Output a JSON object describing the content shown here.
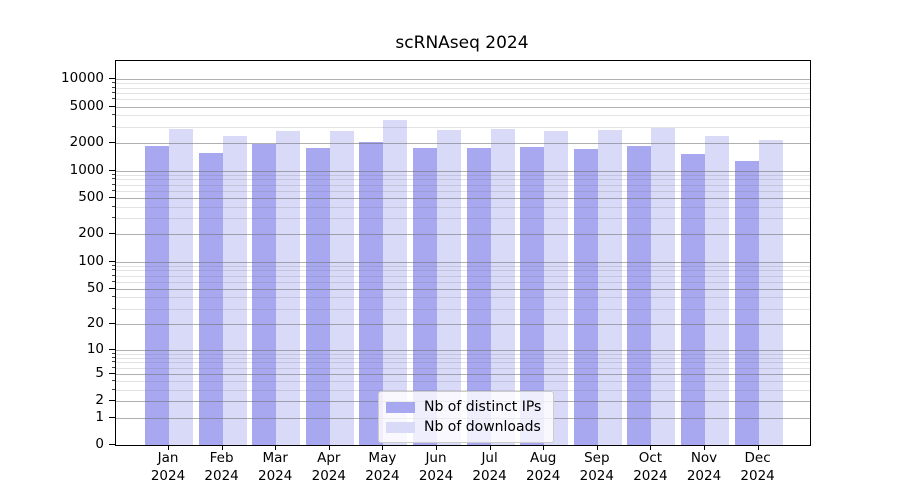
{
  "chart_data": {
    "type": "bar",
    "title": "scRNAseq 2024",
    "scale": "log10(v+1)",
    "categories": [
      {
        "month": "Jan",
        "year": "2024"
      },
      {
        "month": "Feb",
        "year": "2024"
      },
      {
        "month": "Mar",
        "year": "2024"
      },
      {
        "month": "Apr",
        "year": "2024"
      },
      {
        "month": "May",
        "year": "2024"
      },
      {
        "month": "Jun",
        "year": "2024"
      },
      {
        "month": "Jul",
        "year": "2024"
      },
      {
        "month": "Aug",
        "year": "2024"
      },
      {
        "month": "Sep",
        "year": "2024"
      },
      {
        "month": "Oct",
        "year": "2024"
      },
      {
        "month": "Nov",
        "year": "2024"
      },
      {
        "month": "Dec",
        "year": "2024"
      }
    ],
    "series": [
      {
        "name": "Nb of distinct IPs",
        "color": "#a8a8f0",
        "values": [
          1870,
          1540,
          1950,
          1750,
          2040,
          1750,
          1760,
          1790,
          1700,
          1850,
          1530,
          1280
        ]
      },
      {
        "name": "Nb of downloads",
        "color": "#d9d9f8",
        "values": [
          2840,
          2380,
          2720,
          2700,
          3550,
          2790,
          2880,
          2720,
          2790,
          2950,
          2410,
          2160
        ]
      }
    ],
    "y_axis": {
      "ticks": [
        10000,
        5000,
        2000,
        1000,
        500,
        200,
        100,
        50,
        20,
        10,
        5,
        2,
        1,
        0
      ],
      "minor_gridlines": [
        3,
        4,
        6,
        7,
        8,
        9,
        30,
        40,
        60,
        70,
        80,
        90,
        300,
        400,
        600,
        700,
        800,
        900,
        3000,
        4000,
        6000,
        7000,
        8000,
        9000
      ]
    },
    "legend_position": "lower center",
    "grid": true,
    "colors": {
      "spine": "#000000",
      "grid_major": "#b0b0b0",
      "grid_minor": "#e2e2e2",
      "legend_border": "#cccccc",
      "background": "#ffffff"
    }
  }
}
